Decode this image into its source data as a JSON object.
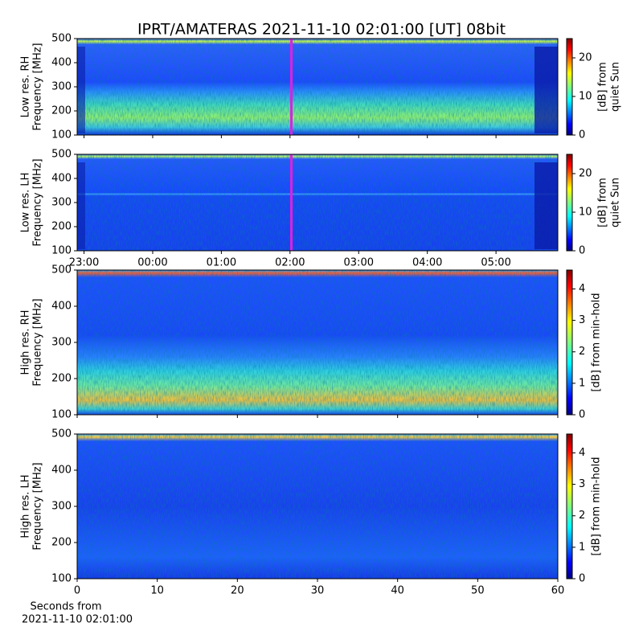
{
  "chart_data": [
    {
      "type": "heatmap",
      "title": "IPRT/AMATERAS 2021-11-10 02:01:00 [UT]   08bit",
      "ylabel": [
        "Low res. RH",
        "Frequency [MHz]"
      ],
      "ylim": [
        100,
        500
      ],
      "yticks": [
        100,
        200,
        300,
        400,
        500
      ],
      "xlim": [
        22.9,
        29.9
      ],
      "marker": {
        "x": 26.02,
        "color": "#e020e0"
      },
      "colorbar": {
        "label": [
          "[dB] from",
          "quiet Sun"
        ],
        "lim": [
          0,
          25
        ],
        "ticks": [
          0,
          10,
          20
        ]
      }
    },
    {
      "type": "heatmap",
      "ylabel": [
        "Low res. LH",
        "Frequency [MHz]"
      ],
      "ylim": [
        100,
        500
      ],
      "yticks": [
        100,
        200,
        300,
        400,
        500
      ],
      "xlim": [
        22.9,
        29.9
      ],
      "marker": {
        "x": 26.02,
        "color": "#e020e0"
      },
      "xticks": [
        {
          "value": 23,
          "label": "23:00"
        },
        {
          "value": 24,
          "label": "00:00"
        },
        {
          "value": 25,
          "label": "01:00"
        },
        {
          "value": 26,
          "label": "02:00"
        },
        {
          "value": 27,
          "label": "03:00"
        },
        {
          "value": 28,
          "label": "04:00"
        },
        {
          "value": 29,
          "label": "05:00"
        }
      ],
      "colorbar": {
        "label": [
          "[dB] from",
          "quiet Sun"
        ],
        "lim": [
          0,
          25
        ],
        "ticks": [
          0,
          10,
          20
        ]
      }
    },
    {
      "type": "heatmap",
      "ylabel": [
        "High res. RH",
        "Frequency [MHz]"
      ],
      "ylim": [
        100,
        500
      ],
      "yticks": [
        100,
        200,
        300,
        400,
        500
      ],
      "xlim": [
        0,
        60
      ],
      "colorbar": {
        "label": [
          "[dB] from min-hold"
        ],
        "lim": [
          0,
          4.6
        ],
        "ticks": [
          0,
          1,
          2,
          3,
          4
        ]
      }
    },
    {
      "type": "heatmap",
      "ylabel": [
        "High res. LH",
        "Frequency [MHz]"
      ],
      "ylim": [
        100,
        500
      ],
      "yticks": [
        100,
        200,
        300,
        400,
        500
      ],
      "xlim": [
        0,
        60
      ],
      "xticks": [
        0,
        10,
        20,
        30,
        40,
        50,
        60
      ],
      "xlabel": [
        "Seconds from",
        "2021-11-10 02:01:00"
      ],
      "colorbar": {
        "label": [
          "[dB] from min-hold"
        ],
        "lim": [
          0,
          4.6
        ],
        "ticks": [
          0,
          1,
          2,
          3,
          4
        ]
      }
    }
  ]
}
